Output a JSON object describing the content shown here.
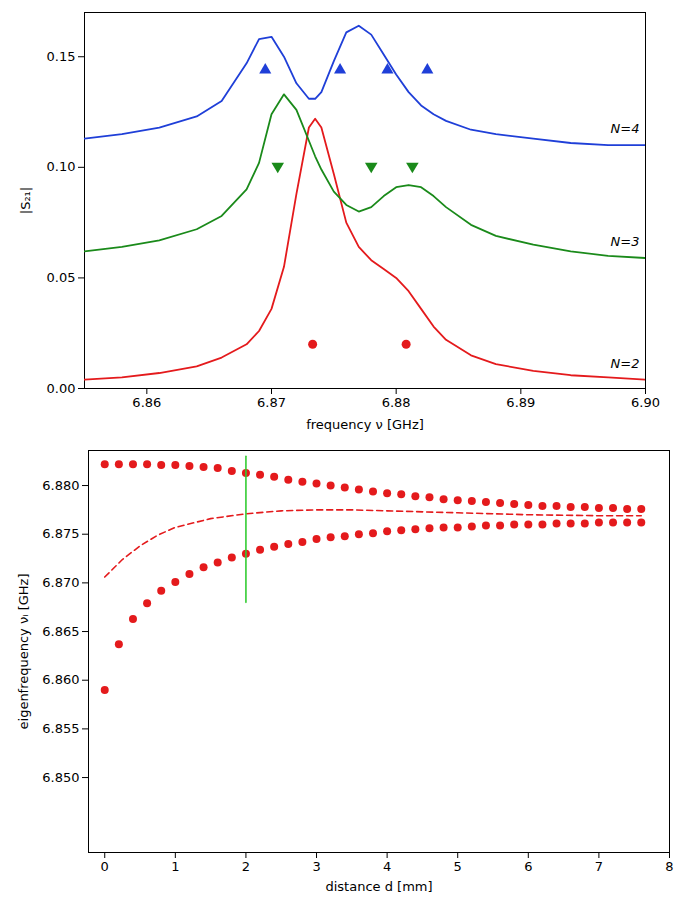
{
  "chart_data": [
    {
      "type": "line",
      "xlabel": "frequency ν [GHz]",
      "ylabel": "|S₂₁|",
      "xlim": [
        6.855,
        6.9
      ],
      "xticks": [
        6.86,
        6.87,
        6.88,
        6.89,
        {
          "value": 6.9,
          "label": "6.90"
        }
      ],
      "ylim": [
        0,
        0.17
      ],
      "yticks": [
        {
          "value": 0,
          "label": "0.00"
        },
        {
          "value": 0.05,
          "label": "0.05"
        },
        {
          "value": 0.1,
          "label": "0.10"
        },
        {
          "value": 0.15,
          "label": "0.15"
        }
      ],
      "grid": false,
      "x": [
        6.855,
        6.858,
        6.861,
        6.864,
        6.866,
        6.868,
        6.869,
        6.87,
        6.871,
        6.872,
        6.873,
        6.8735,
        6.874,
        6.875,
        6.876,
        6.877,
        6.878,
        6.879,
        6.88,
        6.881,
        6.882,
        6.883,
        6.884,
        6.886,
        6.888,
        6.891,
        6.894,
        6.897,
        6.9
      ],
      "series": [
        {
          "name": "N=2",
          "color": "#e41a1c",
          "line_style": "solid",
          "values": [
            0.004,
            0.005,
            0.007,
            0.01,
            0.014,
            0.02,
            0.026,
            0.036,
            0.055,
            0.088,
            0.118,
            0.122,
            0.118,
            0.097,
            0.075,
            0.064,
            0.058,
            0.054,
            0.05,
            0.044,
            0.036,
            0.028,
            0.022,
            0.015,
            0.011,
            0.008,
            0.006,
            0.005,
            0.004
          ],
          "markers": {
            "marker": "circle",
            "x": [
              6.8733,
              6.8808
            ],
            "y": [
              0.02,
              0.02
            ]
          }
        },
        {
          "name": "N=3",
          "color": "#1a8a1a",
          "line_style": "solid",
          "values": [
            0.062,
            0.064,
            0.067,
            0.072,
            0.078,
            0.09,
            0.102,
            0.124,
            0.133,
            0.126,
            0.112,
            0.105,
            0.099,
            0.089,
            0.083,
            0.08,
            0.082,
            0.087,
            0.091,
            0.092,
            0.091,
            0.087,
            0.082,
            0.074,
            0.069,
            0.065,
            0.062,
            0.06,
            0.059
          ],
          "markers": {
            "marker": "triangle-down",
            "x": [
              6.8705,
              6.878,
              6.8813
            ],
            "y": [
              0.1,
              0.1,
              0.1
            ]
          }
        },
        {
          "name": "N=4",
          "color": "#1f3fd8",
          "line_style": "solid",
          "values": [
            0.113,
            0.115,
            0.118,
            0.123,
            0.13,
            0.147,
            0.158,
            0.159,
            0.15,
            0.138,
            0.131,
            0.131,
            0.134,
            0.148,
            0.161,
            0.164,
            0.16,
            0.151,
            0.142,
            0.134,
            0.128,
            0.124,
            0.121,
            0.117,
            0.115,
            0.113,
            0.111,
            0.11,
            0.11
          ],
          "markers": {
            "marker": "triangle",
            "x": [
              6.8695,
              6.8755,
              6.8793,
              6.8825
            ],
            "y": [
              0.144,
              0.144,
              0.144,
              0.144
            ]
          }
        }
      ]
    },
    {
      "type": "scatter",
      "xlabel": "distance d [mm]",
      "ylabel": "eigenfrequency νᵢ [GHz]",
      "xlim": [
        -0.23,
        8
      ],
      "xticks": [
        0,
        1,
        2,
        3,
        4,
        5,
        6,
        7,
        8
      ],
      "ylim": [
        6.8423,
        6.8836
      ],
      "yticks": [
        {
          "value": 6.85,
          "label": "6.850"
        },
        {
          "value": 6.855,
          "label": "6.855"
        },
        {
          "value": 6.86,
          "label": "6.860"
        },
        {
          "value": 6.865,
          "label": "6.865"
        },
        {
          "value": 6.87,
          "label": "6.870"
        },
        {
          "value": 6.875,
          "label": "6.875"
        },
        {
          "value": 6.88,
          "label": "6.880"
        }
      ],
      "grid": false,
      "series": [
        {
          "type": "scatter",
          "marker": "circle",
          "color": "#e41a1c",
          "x": [
            0,
            0.2,
            0.4,
            0.6,
            0.8,
            1.0,
            1.2,
            1.4,
            1.6,
            1.8,
            2.0,
            2.2,
            2.4,
            2.6,
            2.8,
            3.0,
            3.2,
            3.4,
            3.6,
            3.8,
            4.0,
            4.2,
            4.4,
            4.6,
            4.8,
            5.0,
            5.2,
            5.4,
            5.6,
            5.8,
            6.0,
            6.2,
            6.4,
            6.6,
            6.8,
            7.0,
            7.2,
            7.4,
            7.6
          ],
          "values": [
            6.8822,
            6.8822,
            6.8822,
            6.8822,
            6.8821,
            6.8821,
            6.882,
            6.8819,
            6.8818,
            6.8815,
            6.8813,
            6.8811,
            6.8809,
            6.8806,
            6.8804,
            6.8802,
            6.88,
            6.8798,
            6.8796,
            6.8794,
            6.8792,
            6.8791,
            6.8789,
            6.8788,
            6.8786,
            6.8785,
            6.8784,
            6.8783,
            6.8782,
            6.8781,
            6.878,
            6.8779,
            6.8779,
            6.8778,
            6.8778,
            6.8777,
            6.8777,
            6.8776,
            6.8776
          ]
        },
        {
          "type": "scatter",
          "marker": "circle",
          "color": "#e41a1c",
          "x": [
            0,
            0.2,
            0.4,
            0.6,
            0.8,
            1.0,
            1.2,
            1.4,
            1.6,
            1.8,
            2.0,
            2.2,
            2.4,
            2.6,
            2.8,
            3.0,
            3.2,
            3.4,
            3.6,
            3.8,
            4.0,
            4.2,
            4.4,
            4.6,
            4.8,
            5.0,
            5.2,
            5.4,
            5.6,
            5.8,
            6.0,
            6.2,
            6.4,
            6.6,
            6.8,
            7.0,
            7.2,
            7.4,
            7.6
          ],
          "values": [
            6.859,
            6.8637,
            6.8663,
            6.8679,
            6.8692,
            6.8701,
            6.8709,
            6.8716,
            6.8721,
            6.8726,
            6.873,
            6.8734,
            6.8737,
            6.874,
            6.8742,
            6.8745,
            6.8747,
            6.8748,
            6.875,
            6.8751,
            6.8753,
            6.8754,
            6.8755,
            6.8756,
            6.8757,
            6.8757,
            6.8758,
            6.8759,
            6.8759,
            6.876,
            6.876,
            6.876,
            6.8761,
            6.8761,
            6.8761,
            6.8762,
            6.8762,
            6.8762,
            6.8762
          ]
        },
        {
          "type": "line",
          "line_style": "dashed",
          "color": "#e41a1c",
          "x": [
            0,
            0.25,
            0.5,
            0.75,
            1,
            1.5,
            2,
            2.5,
            3,
            3.5,
            4,
            5,
            6,
            7,
            7.6
          ],
          "values": [
            6.8706,
            6.8724,
            6.8738,
            6.8749,
            6.8757,
            6.8766,
            6.8771,
            6.8774,
            6.8775,
            6.8775,
            6.8774,
            6.8772,
            6.877,
            6.8769,
            6.8769
          ]
        },
        {
          "type": "line",
          "line_style": "solid",
          "color": "#33cc33",
          "x": [
            2,
            2
          ],
          "values": [
            6.868,
            6.883
          ]
        }
      ]
    }
  ]
}
